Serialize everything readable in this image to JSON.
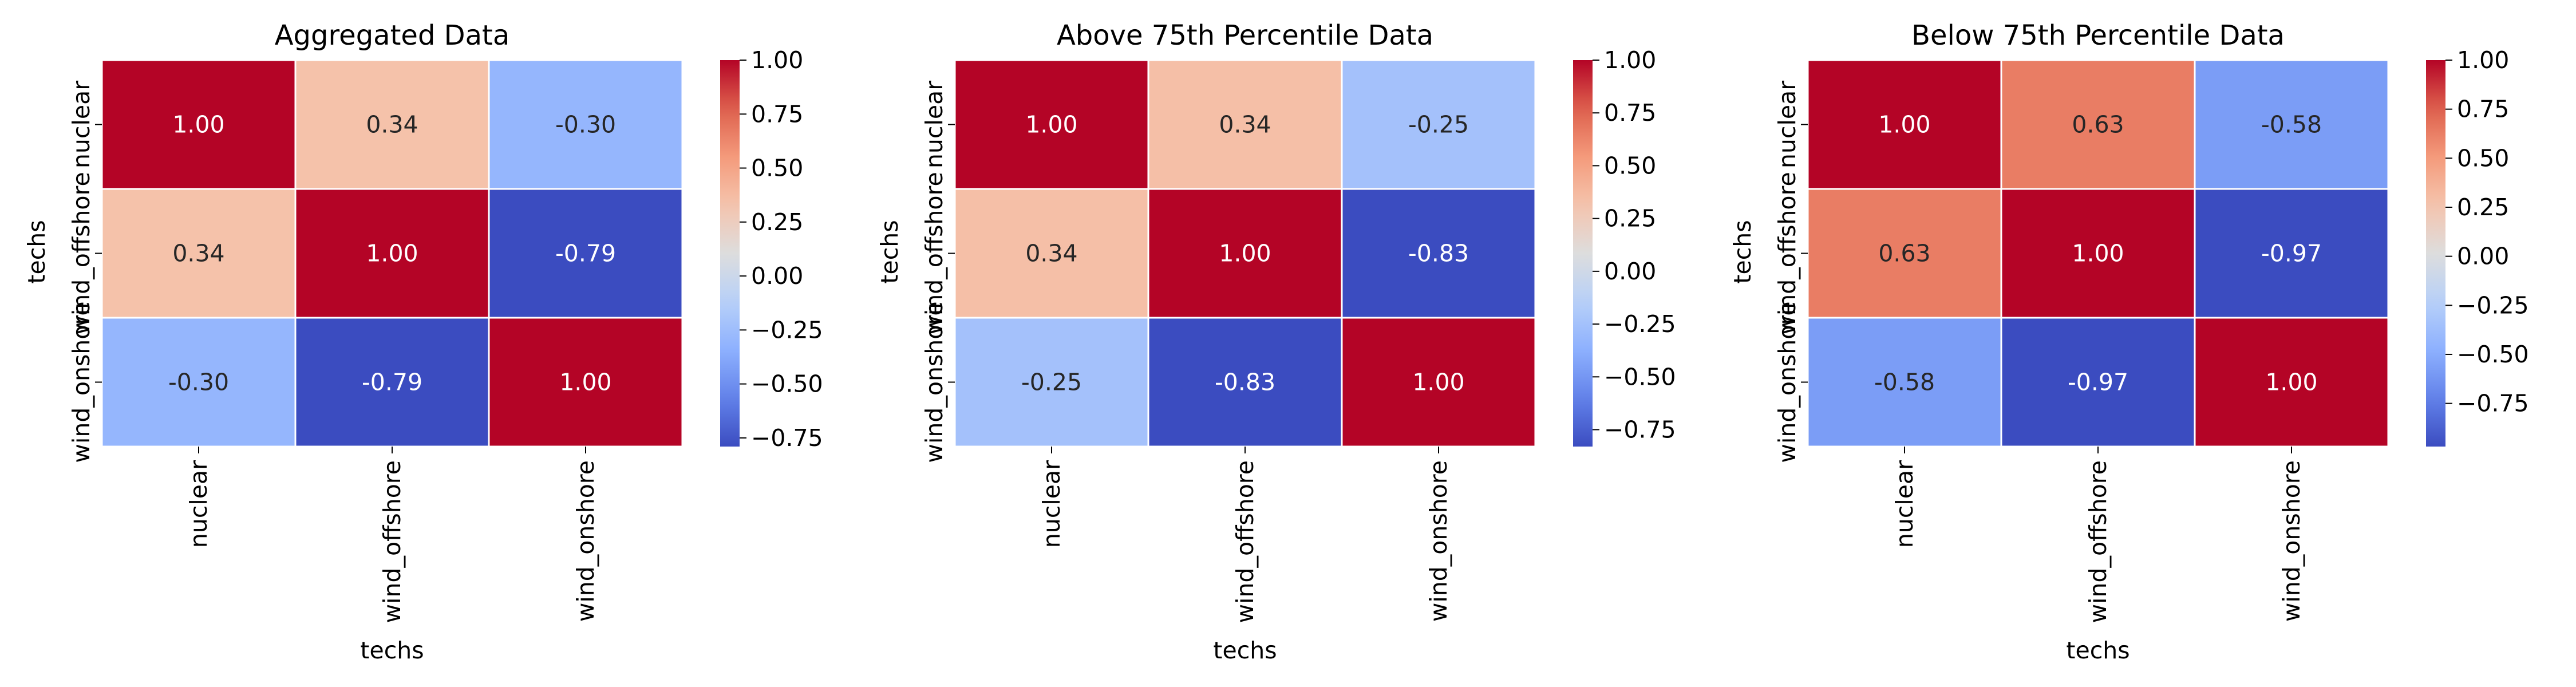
{
  "chart_data": [
    {
      "type": "heatmap",
      "title": "Aggregated Data",
      "xlabel": "techs",
      "ylabel": "techs",
      "x_categories": [
        "nuclear",
        "wind_offshore",
        "wind_onshore"
      ],
      "y_categories": [
        "nuclear",
        "wind_offshore",
        "wind_onshore"
      ],
      "values": [
        [
          1.0,
          0.34,
          -0.3
        ],
        [
          0.34,
          1.0,
          -0.79
        ],
        [
          -0.3,
          -0.79,
          1.0
        ]
      ],
      "annotations": [
        [
          "1.00",
          "0.34",
          "-0.30"
        ],
        [
          "0.34",
          "1.00",
          "-0.79"
        ],
        [
          "-0.30",
          "-0.79",
          "1.00"
        ]
      ],
      "colormap": "coolwarm",
      "color_range": [
        -0.79,
        1.0
      ],
      "colorbar_ticks": [
        "1.00",
        "0.75",
        "0.50",
        "0.25",
        "0.00",
        "−0.25",
        "−0.50",
        "−0.75"
      ],
      "colorbar_tick_values": [
        1.0,
        0.75,
        0.5,
        0.25,
        0.0,
        -0.25,
        -0.5,
        -0.75
      ]
    },
    {
      "type": "heatmap",
      "title": "Above 75th Percentile Data",
      "xlabel": "techs",
      "ylabel": "techs",
      "x_categories": [
        "nuclear",
        "wind_offshore",
        "wind_onshore"
      ],
      "y_categories": [
        "nuclear",
        "wind_offshore",
        "wind_onshore"
      ],
      "values": [
        [
          1.0,
          0.34,
          -0.25
        ],
        [
          0.34,
          1.0,
          -0.83
        ],
        [
          -0.25,
          -0.83,
          1.0
        ]
      ],
      "annotations": [
        [
          "1.00",
          "0.34",
          "-0.25"
        ],
        [
          "0.34",
          "1.00",
          "-0.83"
        ],
        [
          "-0.25",
          "-0.83",
          "1.00"
        ]
      ],
      "colormap": "coolwarm",
      "color_range": [
        -0.83,
        1.0
      ],
      "colorbar_ticks": [
        "1.00",
        "0.75",
        "0.50",
        "0.25",
        "0.00",
        "−0.25",
        "−0.50",
        "−0.75"
      ],
      "colorbar_tick_values": [
        1.0,
        0.75,
        0.5,
        0.25,
        0.0,
        -0.25,
        -0.5,
        -0.75
      ]
    },
    {
      "type": "heatmap",
      "title": "Below 75th Percentile Data",
      "xlabel": "techs",
      "ylabel": "techs",
      "x_categories": [
        "nuclear",
        "wind_offshore",
        "wind_onshore"
      ],
      "y_categories": [
        "nuclear",
        "wind_offshore",
        "wind_onshore"
      ],
      "values": [
        [
          1.0,
          0.63,
          -0.58
        ],
        [
          0.63,
          1.0,
          -0.97
        ],
        [
          -0.58,
          -0.97,
          1.0
        ]
      ],
      "annotations": [
        [
          "1.00",
          "0.63",
          "-0.58"
        ],
        [
          "0.63",
          "1.00",
          "-0.97"
        ],
        [
          "-0.58",
          "-0.97",
          "1.00"
        ]
      ],
      "colormap": "coolwarm",
      "color_range": [
        -0.97,
        1.0
      ],
      "colorbar_ticks": [
        "1.00",
        "0.75",
        "0.50",
        "0.25",
        "0.00",
        "−0.25",
        "−0.50",
        "−0.75"
      ],
      "colorbar_tick_values": [
        1.0,
        0.75,
        0.5,
        0.25,
        0.0,
        -0.25,
        -0.5,
        -0.75
      ]
    }
  ]
}
